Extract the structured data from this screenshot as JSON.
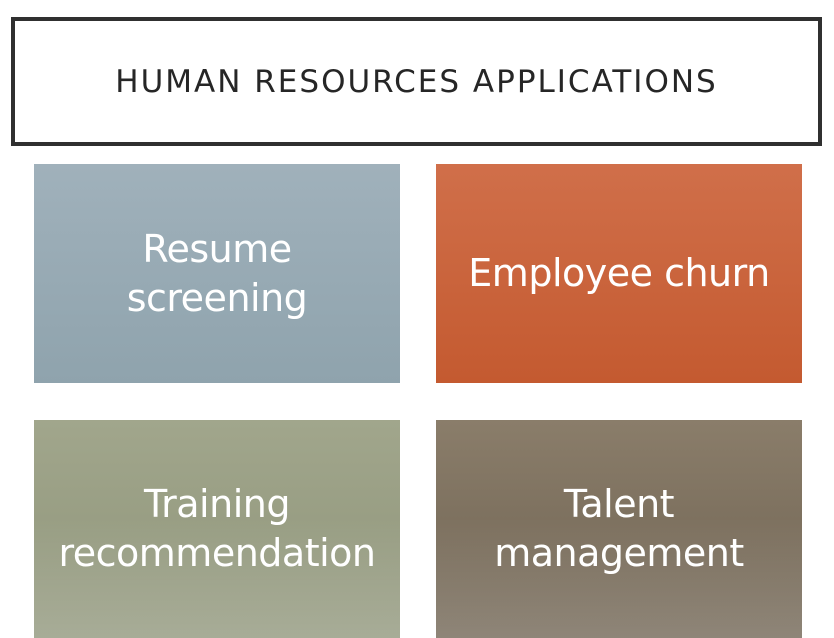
{
  "slide": {
    "title": "HUMAN RESOURCES APPLICATIONS"
  },
  "tiles": [
    {
      "lines": [
        "Resume",
        "screening"
      ],
      "color_top": "#a0b1bb",
      "color_bottom": "#8fa3ad"
    },
    {
      "lines": [
        "Employee churn"
      ],
      "color_top": "#d06f4a",
      "color_bottom": "#c45a30"
    },
    {
      "lines": [
        "Training",
        "recommendation"
      ],
      "color_top": "#a1a68c",
      "color_bottom": "#8f957a"
    },
    {
      "lines": [
        "Talent",
        "management"
      ],
      "color_top": "#8a7d6a",
      "color_bottom": "#6f6352"
    }
  ],
  "colors": {
    "title_border": "#303030",
    "title_text": "#262626",
    "tile_text": "#ffffff"
  }
}
